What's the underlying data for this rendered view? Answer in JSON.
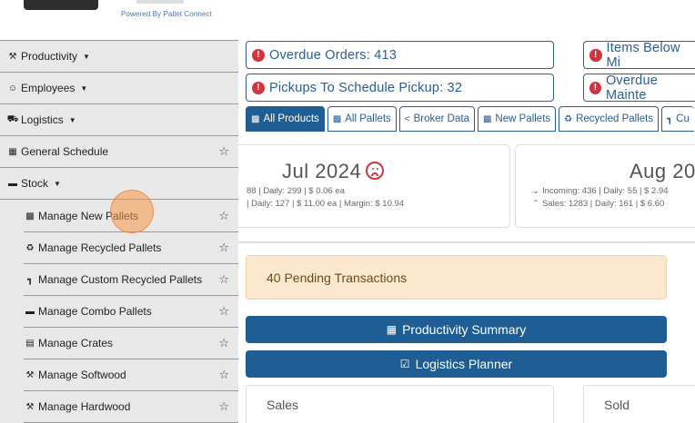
{
  "header": {
    "powered_by": "Powered By Pallet Connect"
  },
  "sidebar": {
    "items": [
      {
        "label": "Productivity",
        "icon": "hammer-icon"
      },
      {
        "label": "Employees",
        "icon": "person-icon"
      },
      {
        "label": "Logistics",
        "icon": "truck-icon"
      },
      {
        "label": "General Schedule",
        "icon": "calendar-icon"
      },
      {
        "label": "Stock",
        "icon": "pallet-icon"
      }
    ],
    "stock_items": [
      {
        "label": "Manage New Pallets",
        "icon": "pallets-icon"
      },
      {
        "label": "Manage Recycled Pallets",
        "icon": "recycle-icon"
      },
      {
        "label": "Manage Custom Recycled Pallets",
        "icon": "custom-icon"
      },
      {
        "label": "Manage Combo Pallets",
        "icon": "combo-icon"
      },
      {
        "label": "Manage Crates",
        "icon": "crate-icon"
      },
      {
        "label": "Manage Softwood",
        "icon": "hammer-icon"
      },
      {
        "label": "Manage Hardwood",
        "icon": "hammer-icon"
      }
    ]
  },
  "alerts": {
    "overdue_orders": "Overdue Orders: 413",
    "pickups": "Pickups To Schedule Pickup: 32",
    "items_below": "Items Below Mi",
    "overdue_maint": "Overdue Mainte"
  },
  "tabs": [
    {
      "label": "All Products"
    },
    {
      "label": "All Pallets"
    },
    {
      "label": "Broker Data"
    },
    {
      "label": "New Pallets"
    },
    {
      "label": "Recycled Pallets"
    },
    {
      "label": "Cu"
    }
  ],
  "months": {
    "jul": {
      "title": "Jul 2024",
      "line1": "88 | Daily: 299 | $ 0.06 ea",
      "line2": "| Daily: 127 | $ 11.00 ea | Margin: $ 10.94"
    },
    "aug": {
      "title": "Aug 20",
      "line1": "Incoming: 436 | Daily: 55 | $ 2.94",
      "line2": "Sales: 1283 | Daily: 161 | $ 6.60"
    }
  },
  "pending": "40 Pending Transactions",
  "buttons": {
    "productivity": "Productivity Summary",
    "logistics": "Logistics Planner"
  },
  "panels": {
    "sales": "Sales",
    "sold": "Sold"
  },
  "colors": {
    "primary": "#1f5d95",
    "alert_red": "#d2333d",
    "pending_bg": "#fbe8cf"
  }
}
